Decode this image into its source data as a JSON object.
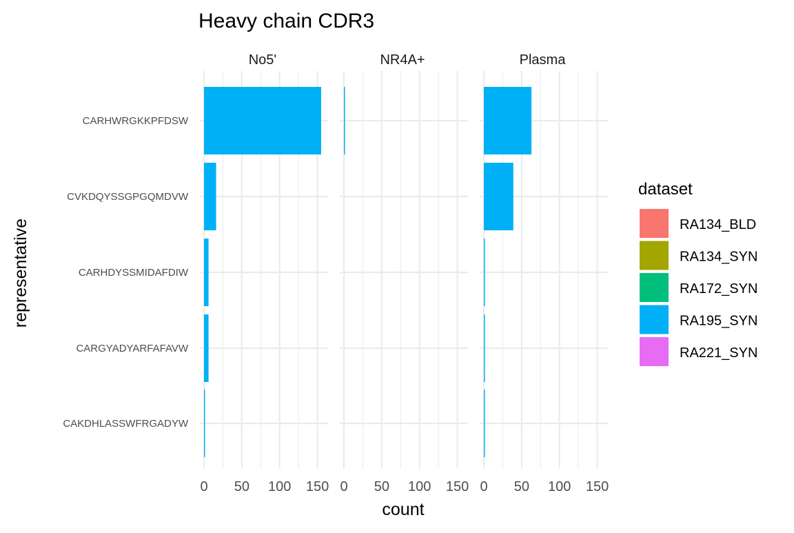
{
  "chart_data": {
    "type": "bar",
    "orientation": "horizontal",
    "faceted": true,
    "title": "Heavy chain CDR3",
    "xlabel": "count",
    "ylabel": "representative",
    "xlim": [
      0,
      155
    ],
    "xticks": [
      0,
      50,
      100,
      150
    ],
    "grid": true,
    "legend": {
      "title": "dataset",
      "placement": "right",
      "entries": [
        {
          "name": "RA134_BLD",
          "color": "#F8766D"
        },
        {
          "name": "RA134_SYN",
          "color": "#A3A500"
        },
        {
          "name": "RA172_SYN",
          "color": "#00BF7D"
        },
        {
          "name": "RA195_SYN",
          "color": "#00B0F6"
        },
        {
          "name": "RA221_SYN",
          "color": "#E76BF3"
        }
      ]
    },
    "categories": [
      "CARHWRGKKPFDSW",
      "CVKDQYSSGPGQMDVW",
      "CARHDYSSMIDAFDIW",
      "CARGYADYARFAFAVW",
      "CAKDHLASSWFRGADYW"
    ],
    "facets": [
      {
        "name": "No5'",
        "series": [
          {
            "name": "RA195_SYN",
            "values": [
              155,
              16,
              6,
              6,
              1
            ]
          }
        ]
      },
      {
        "name": "NR4A+",
        "series": [
          {
            "name": "RA195_SYN",
            "values": [
              1,
              0,
              0,
              0,
              0
            ]
          }
        ]
      },
      {
        "name": "Plasma",
        "series": [
          {
            "name": "RA195_SYN",
            "values": [
              63,
              39,
              1,
              1,
              1
            ]
          }
        ]
      }
    ]
  }
}
